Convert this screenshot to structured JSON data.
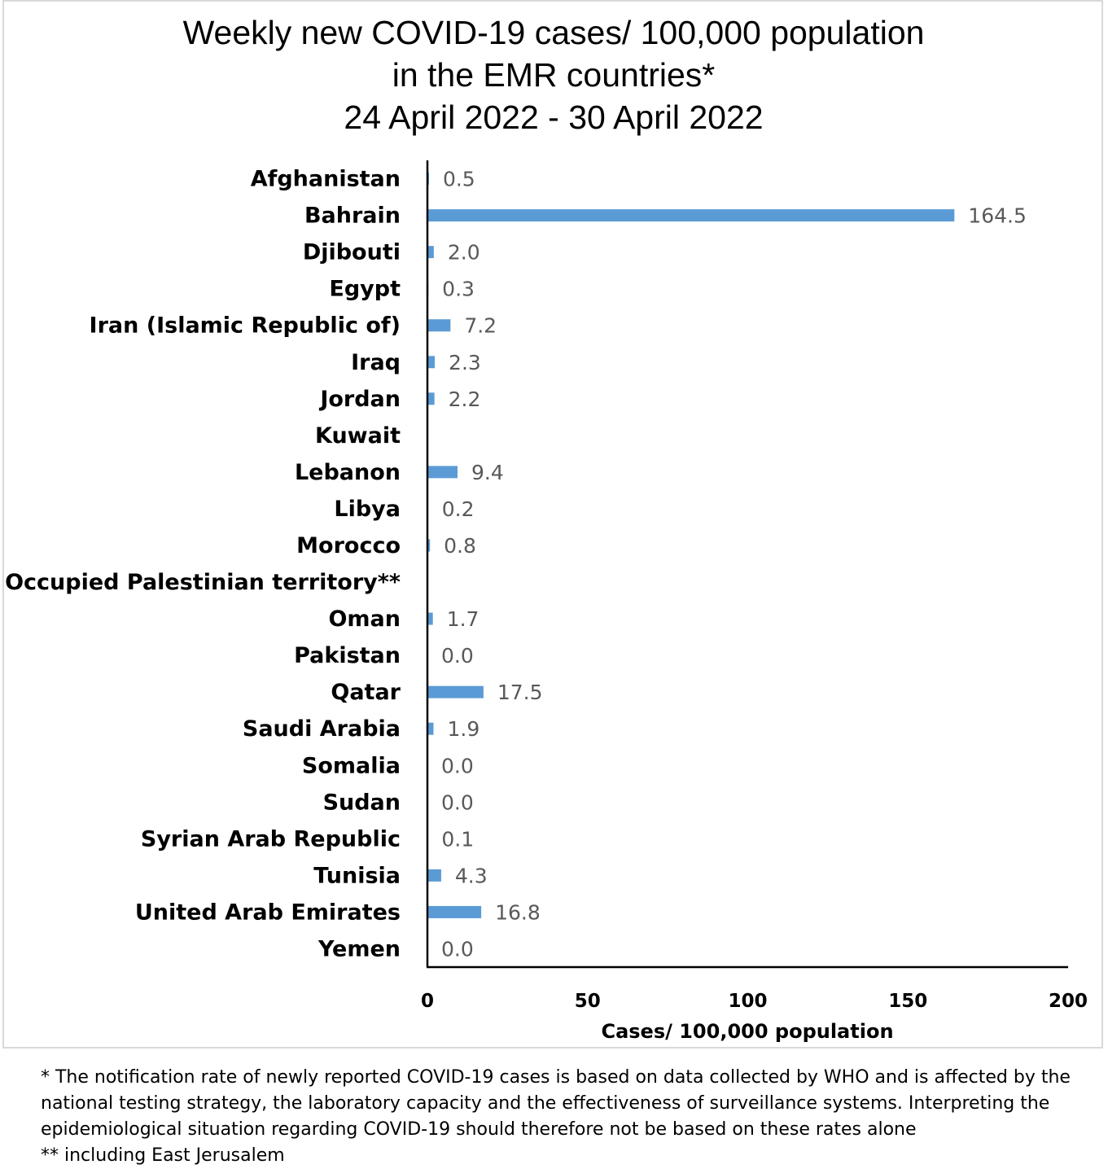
{
  "chart_data": {
    "type": "bar",
    "orientation": "horizontal",
    "title": [
      "Weekly new COVID-19 cases/ 100,000 population",
      "in the EMR countries*",
      "24 April 2022 - 30 April 2022"
    ],
    "xlabel": "Cases/ 100,000 population",
    "ylabel": "",
    "xlim": [
      0,
      200
    ],
    "xticks": [
      "0",
      "50",
      "100",
      "150",
      "200"
    ],
    "tick_values": [
      0,
      50,
      100,
      150,
      200
    ],
    "grid": false,
    "bar_color": "#5b9bd5",
    "categories": [
      "Afghanistan",
      "Bahrain",
      "Djibouti",
      "Egypt",
      "Iran (Islamic Republic of)",
      "Iraq",
      "Jordan",
      "Kuwait",
      "Lebanon",
      "Libya",
      "Morocco",
      "Occupied Palestinian territory**",
      "Oman",
      "Pakistan",
      "Qatar",
      "Saudi Arabia",
      "Somalia",
      "Sudan",
      "Syrian Arab Republic",
      "Tunisia",
      "United Arab Emirates",
      "Yemen"
    ],
    "values": [
      0.5,
      164.5,
      2.0,
      0.3,
      7.2,
      2.3,
      2.2,
      null,
      9.4,
      0.2,
      0.8,
      null,
      1.7,
      0.0,
      17.5,
      1.9,
      0.0,
      0.0,
      0.1,
      4.3,
      16.8,
      0.0
    ],
    "value_labels": [
      "0.5",
      "164.5",
      "2.0",
      "0.3",
      "7.2",
      "2.3",
      "2.2",
      "",
      "9.4",
      "0.2",
      "0.8",
      "",
      "1.7",
      "0.0",
      "17.5",
      "1.9",
      "0.0",
      "0.0",
      "0.1",
      "4.3",
      "16.8",
      "0.0"
    ]
  },
  "footnotes": {
    "note1": "* The notification rate of newly reported COVID-19 cases is based on data collected by WHO and is affected by the national testing strategy, the laboratory capacity and the effectiveness of surveillance systems. Interpreting the epidemiological situation regarding COVID-19 should therefore not be based on these rates alone",
    "note2": "** including East Jerusalem"
  }
}
